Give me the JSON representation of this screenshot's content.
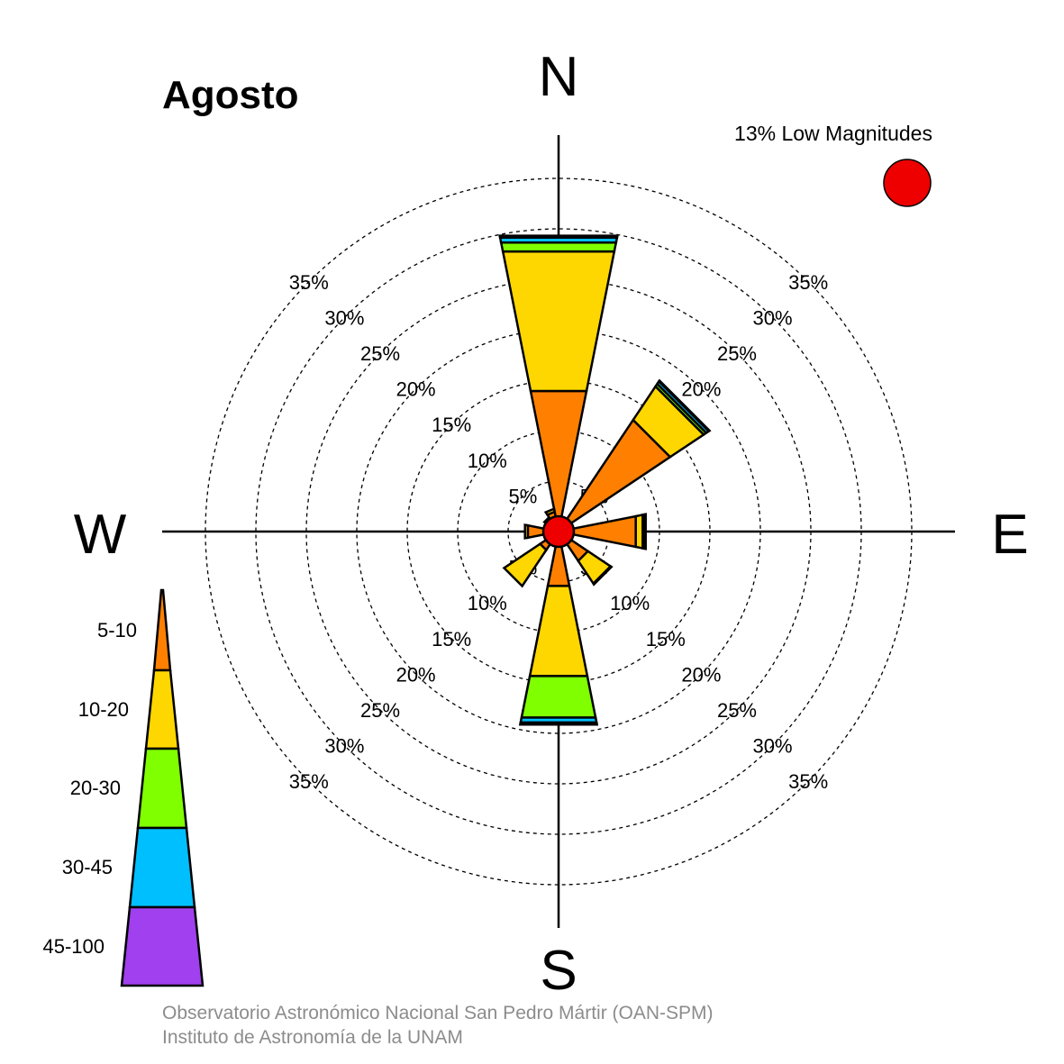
{
  "title": "Agosto",
  "calm": {
    "label": "13% Low Magnitudes",
    "color": "#ee0000"
  },
  "cardinals": {
    "n": "N",
    "e": "E",
    "s": "S",
    "w": "W"
  },
  "credits": {
    "line1": "Observatorio Astronómico Nacional San Pedro Mártir (OAN-SPM)",
    "line2": "Instituto de Astronomía de la UNAM"
  },
  "legend": {
    "bins": [
      {
        "label": "5-10",
        "color": "#ff8000"
      },
      {
        "label": "10-20",
        "color": "#ffd700"
      },
      {
        "label": "20-30",
        "color": "#80ff00"
      },
      {
        "label": "30-45",
        "color": "#00bfff"
      },
      {
        "label": "45-100",
        "color": "#a040ee"
      }
    ]
  },
  "chart_data": {
    "type": "wind-rose",
    "title": "Agosto",
    "unit": "%",
    "ring_values": [
      5,
      10,
      15,
      20,
      25,
      30,
      35
    ],
    "ring_label_text": [
      "5%",
      "10%",
      "15%",
      "20%",
      "25%",
      "30%",
      "35%"
    ],
    "calm_percent": 13,
    "bins": [
      "5-10",
      "10-20",
      "20-30",
      "30-45",
      "45-100"
    ],
    "directions_deg": [
      0,
      45,
      90,
      135,
      180,
      225,
      270,
      315,
      337.5
    ],
    "cumulative_percent": [
      [
        14.2,
        28.3,
        29.2,
        29.7,
        29.9
      ],
      [
        13.3,
        17.3,
        17.6,
        17.9,
        18.0
      ],
      [
        7.8,
        8.5,
        8.7,
        8.8,
        8.8
      ],
      [
        3.5,
        6.2,
        6.3,
        6.3,
        6.3
      ],
      [
        5.5,
        14.6,
        18.8,
        19.3,
        19.5
      ],
      [
        2.2,
        6.5,
        6.5,
        6.5,
        6.5
      ],
      [
        3.1,
        3.4,
        3.4,
        3.4,
        3.4
      ],
      [
        1.4,
        1.7,
        1.7,
        1.7,
        1.7
      ],
      [
        2.0,
        2.3,
        2.3,
        2.3,
        2.3
      ]
    ]
  }
}
